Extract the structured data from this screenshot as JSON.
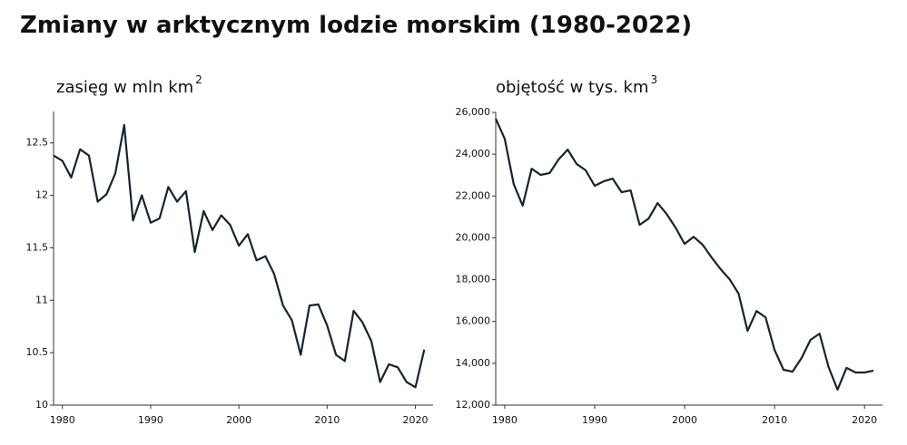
{
  "title": "Zmiany w arktycznym lodzie morskim (1980-2022)",
  "chart_data": [
    {
      "type": "line",
      "title": "zasięg w mln km",
      "title_superscript": "2",
      "color": "#14252f",
      "x": [
        1979,
        1980,
        1981,
        1982,
        1983,
        1984,
        1985,
        1986,
        1987,
        1988,
        1989,
        1990,
        1991,
        1992,
        1993,
        1994,
        1995,
        1996,
        1997,
        1998,
        1999,
        2000,
        2001,
        2002,
        2003,
        2004,
        2005,
        2006,
        2007,
        2008,
        2009,
        2010,
        2011,
        2012,
        2013,
        2014,
        2015,
        2016,
        2017,
        2018,
        2019,
        2020,
        2021
      ],
      "values": [
        12.38,
        12.33,
        12.17,
        12.44,
        12.38,
        11.94,
        12.01,
        12.21,
        12.67,
        11.76,
        12.0,
        11.74,
        11.78,
        12.08,
        11.94,
        12.04,
        11.46,
        11.85,
        11.67,
        11.81,
        11.72,
        11.52,
        11.63,
        11.38,
        11.42,
        11.25,
        10.95,
        10.81,
        10.48,
        10.95,
        10.96,
        10.76,
        10.48,
        10.42,
        10.9,
        10.79,
        10.61,
        10.22,
        10.39,
        10.36,
        10.22,
        10.17,
        10.53
      ],
      "xlim": [
        1979,
        2022
      ],
      "xticks": [
        1980,
        1990,
        2000,
        2010,
        2020
      ],
      "ylim": [
        10,
        12.8
      ],
      "yticks": [
        10,
        10.5,
        11,
        11.5,
        12,
        12.5
      ]
    },
    {
      "type": "line",
      "title": "objętość w tys. km",
      "title_superscript": "3",
      "color": "#14252f",
      "x": [
        1979,
        1980,
        1981,
        1982,
        1983,
        1984,
        1985,
        1986,
        1987,
        1988,
        1989,
        1990,
        1991,
        1992,
        1993,
        1994,
        1995,
        1996,
        1997,
        1998,
        1999,
        2000,
        2001,
        2002,
        2003,
        2004,
        2005,
        2006,
        2007,
        2008,
        2009,
        2010,
        2011,
        2012,
        2013,
        2014,
        2015,
        2016,
        2017,
        2018,
        2019,
        2020,
        2021
      ],
      "values": [
        25700,
        24740,
        22570,
        21540,
        23310,
        23010,
        23100,
        23750,
        24220,
        23530,
        23230,
        22490,
        22700,
        22830,
        22180,
        22270,
        20620,
        20920,
        21660,
        21140,
        20490,
        19710,
        20050,
        19670,
        19060,
        18500,
        18020,
        17330,
        15550,
        16500,
        16200,
        14640,
        13690,
        13600,
        14250,
        15120,
        15420,
        13820,
        12740,
        13780,
        13560,
        13560,
        13650
      ],
      "xlim": [
        1979,
        2022
      ],
      "xticks": [
        1980,
        1990,
        2000,
        2010,
        2020
      ],
      "ylim": [
        12000,
        26000
      ],
      "yticks": [
        {
          "value": 12000,
          "label": "12,000"
        },
        {
          "value": 14000,
          "label": "14,000"
        },
        {
          "value": 16000,
          "label": "16,000"
        },
        {
          "value": 18000,
          "label": "18,000"
        },
        {
          "value": 20000,
          "label": "20,000"
        },
        {
          "value": 22000,
          "label": "22,000"
        },
        {
          "value": 24000,
          "label": "24,000"
        },
        {
          "value": 26000,
          "label": "26,000"
        }
      ]
    }
  ]
}
